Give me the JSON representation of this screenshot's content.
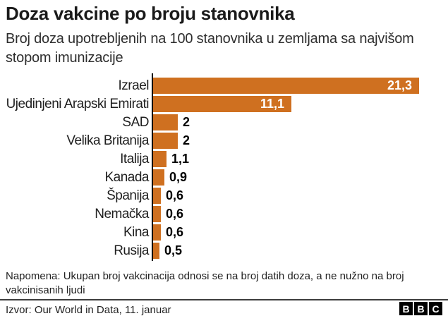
{
  "header": {
    "title": "Doza vakcine po broju stanovnika",
    "subtitle": "Broj doza upotrebljenih na 100 stanovnika u zemljama sa najvišom stopom imunizacije"
  },
  "footer": {
    "note": "Napomena: Ukupan broj vakcinacija odnosi se na broj datih doza, a ne nužno na broj vakcinisanih ljudi",
    "source": "Izvor: Our World in Data, 11. januar",
    "logo_letters": [
      "B",
      "B",
      "C"
    ]
  },
  "colors": {
    "bar": "#cf7020",
    "axis": "#000000",
    "value_inside_text": "#ffffff",
    "value_outside_text": "#000000",
    "divider": "#3d3d3d"
  },
  "chart_data": {
    "type": "bar",
    "orientation": "horizontal",
    "title": "Doza vakcine po broju stanovnika",
    "subtitle": "Broj doza upotrebljenih na 100 stanovnika u zemljama sa najvišom stopom imunizacije",
    "xlabel": "",
    "ylabel": "",
    "categories": [
      "Izrael",
      "Ujedinjeni Arapski Emirati",
      "SAD",
      "Velika Britanija",
      "Italija",
      "Kanada",
      "Španija",
      "Nemačka",
      "Kina",
      "Rusija"
    ],
    "values": [
      21.3,
      11.1,
      2,
      2,
      1.1,
      0.9,
      0.6,
      0.6,
      0.6,
      0.5
    ],
    "value_labels": [
      "21,3",
      "11,1",
      "2",
      "2",
      "1,1",
      "0,9",
      "0,6",
      "0,6",
      "0,6",
      "0,5"
    ],
    "value_label_inside_bar": [
      true,
      true,
      false,
      false,
      false,
      false,
      false,
      false,
      false,
      false
    ],
    "xlim": [
      0,
      22.3
    ],
    "grid": false,
    "legend": false,
    "note": "Napomena: Ukupan broj vakcinacija odnosi se na broj datih doza, a ne nužno na broj vakcinisanih ljudi",
    "source": "Izvor: Our World in Data, 11. januar"
  }
}
